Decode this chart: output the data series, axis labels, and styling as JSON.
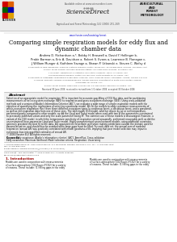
{
  "title_line1": "Comparing simple respiration models for eddy flux and",
  "title_line2": "dynamic chamber data",
  "authors_line1": "Andrew D. Richardson a,*, Bobby H. Braswell a, David Y. Hollinger b,",
  "authors_line2": "Prabir Barman a, Eric A. Davidson a, Robert S. Evans a, Lawrence B. Flanagan c,",
  "authors_line3": "J. William Munger d, Kathleen Savage a, Shawn P. Urbanski e, Steven C. Wofsy d",
  "journal_header": "Agricultural and Forest Meteorology 141 (2006) 251–269",
  "journal_name": "AGRICULTURAL\nAND\nFOREST\nMETEOROLOGY",
  "available_online": "Available online at www.sciencedirect.com",
  "sciencedirect": "ScienceDirect",
  "abstract_title": "Abstract",
  "abstract_lines": [
    "Selection of an appropriate model for respiration (R) is important for accurate gap-filling of CO2 flux data, and for partitioning",
    "measurements of net ecosystem exchange (NEE) to respiration and gross ecosystem exchange (GEE). Using cross-validation",
    "methods and a version of Akaike's Information Criterion (AIC'), we evaluate a wide range of simple respiration models with the",
    "objective of quantifying the implications of selecting a particular model. We fit the models to eddy covariance measurements of",
    "whole-ecosystem respiration (Rec) from three different ecosystem types (a coniferous forest, a deciduous forest, and a grassland),",
    "as well as soil respiration data from one of these sites. The well-known Q10 model, whether driven by air or soil temperature,",
    "performed poorly compared to other models, as did the Lloyd and Taylor model when used with two of the parameters constrained",
    "to previously published values and only the scale parameter being fit. The common use of these models is discouraged. However, a",
    "variant of the Q10 model, in which the temperature sensitivity of respiration varied seasonally, performed reasonably well, as did the",
    "unconstrained three-parameter Lloyd and Taylor model. Highly parameterized neural network models, using additional covariates,",
    "generally provided the best fit to the data, but appeared not to perform well when making predictions outside the domain used for",
    "parameterization, and should thus be avoided when large gaps must be filled. For each data set, the annual sum of modeled",
    "respiration (annual ΔR) was positively correlated with model goodness-of-fit, implying that poor model selection may impart a",
    "systematic bias into gap-filled estimates of annual ΔR.",
    "© 2006 Elsevier B.V. All rights reserved."
  ],
  "keywords_label": "Keywords:",
  "keywords_text": "Eddy covariance; Akaike's information criterion; (AIC'); AmeriFlux; Cross-validation; Eddy covariance; Maximum likelihood; Model selection criteria; Respiration; Uncertainty",
  "intro_title": "1. Introduction",
  "intro_lines": [
    "Models are used in conjunction with measurements",
    "of surface-atmosphere CO2 fluxes (FCO2) for a variety",
    "of reasons. These include: (1) filling gaps in the eddy"
  ],
  "affils": [
    "a University of New Hampshire, Complex Systems Research Center, Morse Hall, 39 College Road, Durham, NH 03824, USA",
    "b USDA Forest Service, Northern Research Station, 271 Mast Road, Durham, NH 03824, USA",
    "c US Forest, Department of Statistics, Ohio State University, Davis, CA 95616, USA",
    "d Hubbard Brook Research Center, P.O. Box 295, North Woodstock, NH 03262, USA",
    "e University of Lethbridge, Department of Biological Sciences, 4401 University Drive, Lethbridge, Alberta, Canada T1K 3M4",
    "f Harvard University, Division of Engineering and Applied Sciences, Department of Earth and Planetary Science,",
    "  Cambridge, MA 02138, USA",
    "g USDA Forest Service, RMRS-Fire Sciences Lab, P.O. Box 50096, Missoula, MT 59804, USA"
  ],
  "received": "Received 30 June 2006; received in revised form 1 October 2006; accepted 30 October 2006",
  "footer_left": "* Corresponding author at: USDA Forest Service, 271 Mast Road, Durham, NH 03824, USA. Tel.: +1 603 868 7650;",
  "footer_left2": "fax: +1 603 868 7604.",
  "footer_email": "E-mail address: andrew.richardson@unh.edu (A.D. Richardson).",
  "issn": "0168-1923/$ – see front matter © 2006 Elsevier B.V. All rights reserved.",
  "doi": "doi:10.1016/j.agrformet.2006.10.010",
  "bg": "#ffffff",
  "header_bg": "#ececec",
  "agfor_bg": "#d8d8d8",
  "abstract_bg": "#f0f0f0",
  "gray_line": "#999999",
  "dark_text": "#111111",
  "mid_text": "#333333",
  "light_text": "#555555",
  "url_color": "#0000cc",
  "intro_color": "#990000"
}
